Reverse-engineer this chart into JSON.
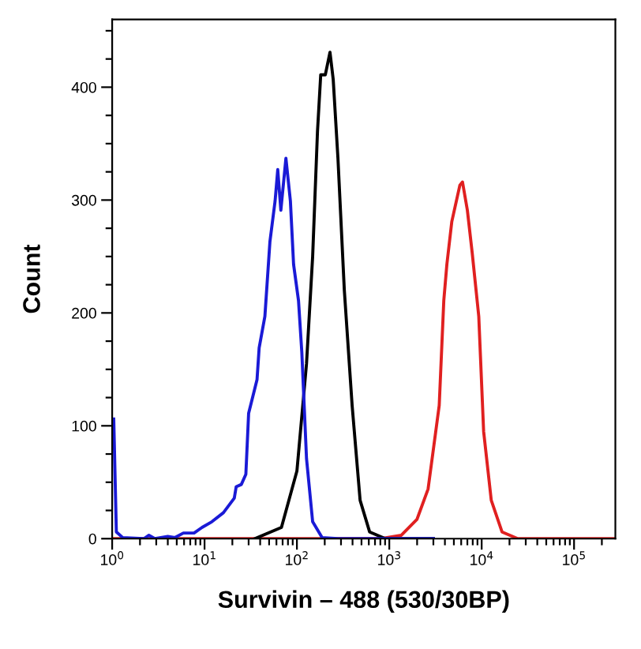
{
  "chart_data": {
    "type": "line",
    "xlabel": "Survivin – 488 (530/30BP)",
    "ylabel": "Count",
    "log": "x",
    "xlim": [
      1,
      280000
    ],
    "xticks": [
      {
        "value": 1,
        "label": "10$^{0}$"
      },
      {
        "value": 2,
        "label": null
      },
      {
        "value": 3,
        "label": null
      },
      {
        "value": 4,
        "label": null
      },
      {
        "value": 5,
        "label": null
      },
      {
        "value": 6,
        "label": null
      },
      {
        "value": 7,
        "label": null
      },
      {
        "value": 8,
        "label": null
      },
      {
        "value": 9,
        "label": null
      },
      {
        "value": 10,
        "label": "10$^{1}$"
      },
      {
        "value": 20,
        "label": null
      },
      {
        "value": 30,
        "label": null
      },
      {
        "value": 40,
        "label": null
      },
      {
        "value": 50,
        "label": null
      },
      {
        "value": 60,
        "label": null
      },
      {
        "value": 70,
        "label": null
      },
      {
        "value": 80,
        "label": null
      },
      {
        "value": 90,
        "label": null
      },
      {
        "value": 100,
        "label": "10$^{2}$"
      },
      {
        "value": 200,
        "label": null
      },
      {
        "value": 300,
        "label": null
      },
      {
        "value": 400,
        "label": null
      },
      {
        "value": 500,
        "label": null
      },
      {
        "value": 600,
        "label": null
      },
      {
        "value": 700,
        "label": null
      },
      {
        "value": 800,
        "label": null
      },
      {
        "value": 900,
        "label": null
      },
      {
        "value": 1000,
        "label": "10$^{3}$"
      },
      {
        "value": 2000,
        "label": null
      },
      {
        "value": 3000,
        "label": null
      },
      {
        "value": 4000,
        "label": null
      },
      {
        "value": 5000,
        "label": null
      },
      {
        "value": 6000,
        "label": null
      },
      {
        "value": 7000,
        "label": null
      },
      {
        "value": 8000,
        "label": null
      },
      {
        "value": 9000,
        "label": null
      },
      {
        "value": 10000,
        "label": "10$^{4}$"
      },
      {
        "value": 20000,
        "label": null
      },
      {
        "value": 30000,
        "label": null
      },
      {
        "value": 40000,
        "label": null
      },
      {
        "value": 50000,
        "label": null
      },
      {
        "value": 60000,
        "label": null
      },
      {
        "value": 70000,
        "label": null
      },
      {
        "value": 80000,
        "label": null
      },
      {
        "value": 90000,
        "label": null
      },
      {
        "value": 100000,
        "label": "10$^{5}$"
      },
      {
        "value": 200000,
        "label": null
      }
    ],
    "ylim": [
      0,
      460
    ],
    "yticks": [
      0,
      {
        "value": 25,
        "label": null
      },
      {
        "value": 50,
        "label": null
      },
      {
        "value": 75,
        "label": null
      },
      100,
      {
        "value": 125,
        "label": null
      },
      {
        "value": 150,
        "label": null
      },
      {
        "value": 175,
        "label": null
      },
      200,
      {
        "value": 225,
        "label": null
      },
      {
        "value": 250,
        "label": null
      },
      {
        "value": 275,
        "label": null
      },
      300,
      {
        "value": 325,
        "label": null
      },
      {
        "value": 350,
        "label": null
      },
      {
        "value": 375,
        "label": null
      },
      400,
      {
        "value": 425,
        "label": null
      },
      {
        "value": 450,
        "label": null
      }
    ],
    "grid": false,
    "legend": false,
    "marker": "none",
    "line_style": "solid",
    "series": [
      {
        "color": "#e02020",
        "x": [
          1.04,
          810,
          1350,
          1990,
          2630,
          3470,
          3890,
          4200,
          4750,
          5800,
          6200,
          7000,
          7900,
          9300,
          10500,
          12700,
          16600,
          24600,
          270000
        ],
        "values": [
          0,
          0,
          3,
          17,
          44,
          118,
          211,
          243,
          281,
          313,
          316,
          291,
          253,
          197,
          95,
          34,
          6,
          0,
          0
        ]
      },
      {
        "color": "#000000",
        "x": [
          35,
          68,
          100,
          127,
          148,
          167,
          181,
          203,
          228,
          247,
          278,
          326,
          396,
          483,
          612,
          907,
          3000
        ],
        "values": [
          0,
          10,
          60,
          155,
          250,
          361,
          411,
          411,
          431,
          407,
          337,
          220,
          118,
          34,
          6,
          0,
          0
        ]
      },
      {
        "color": "#1a1ad6",
        "x": [
          1.04,
          1.11,
          1.3,
          2.2,
          2.5,
          2.9,
          4.0,
          4.8,
          5.9,
          7.7,
          9.4,
          12,
          16,
          21,
          22,
          25,
          28,
          30,
          37,
          39,
          45,
          51,
          58,
          62,
          67,
          76,
          85,
          92,
          104,
          113,
          127,
          148,
          187,
          278,
          3000
        ],
        "values": [
          106,
          6,
          1,
          0,
          3,
          0,
          2,
          1,
          5,
          5,
          10,
          15,
          23,
          36,
          46,
          48,
          57,
          111,
          141,
          169,
          197,
          263,
          299,
          327,
          291,
          337,
          299,
          243,
          211,
          165,
          71,
          15,
          1,
          0,
          0
        ]
      }
    ]
  }
}
